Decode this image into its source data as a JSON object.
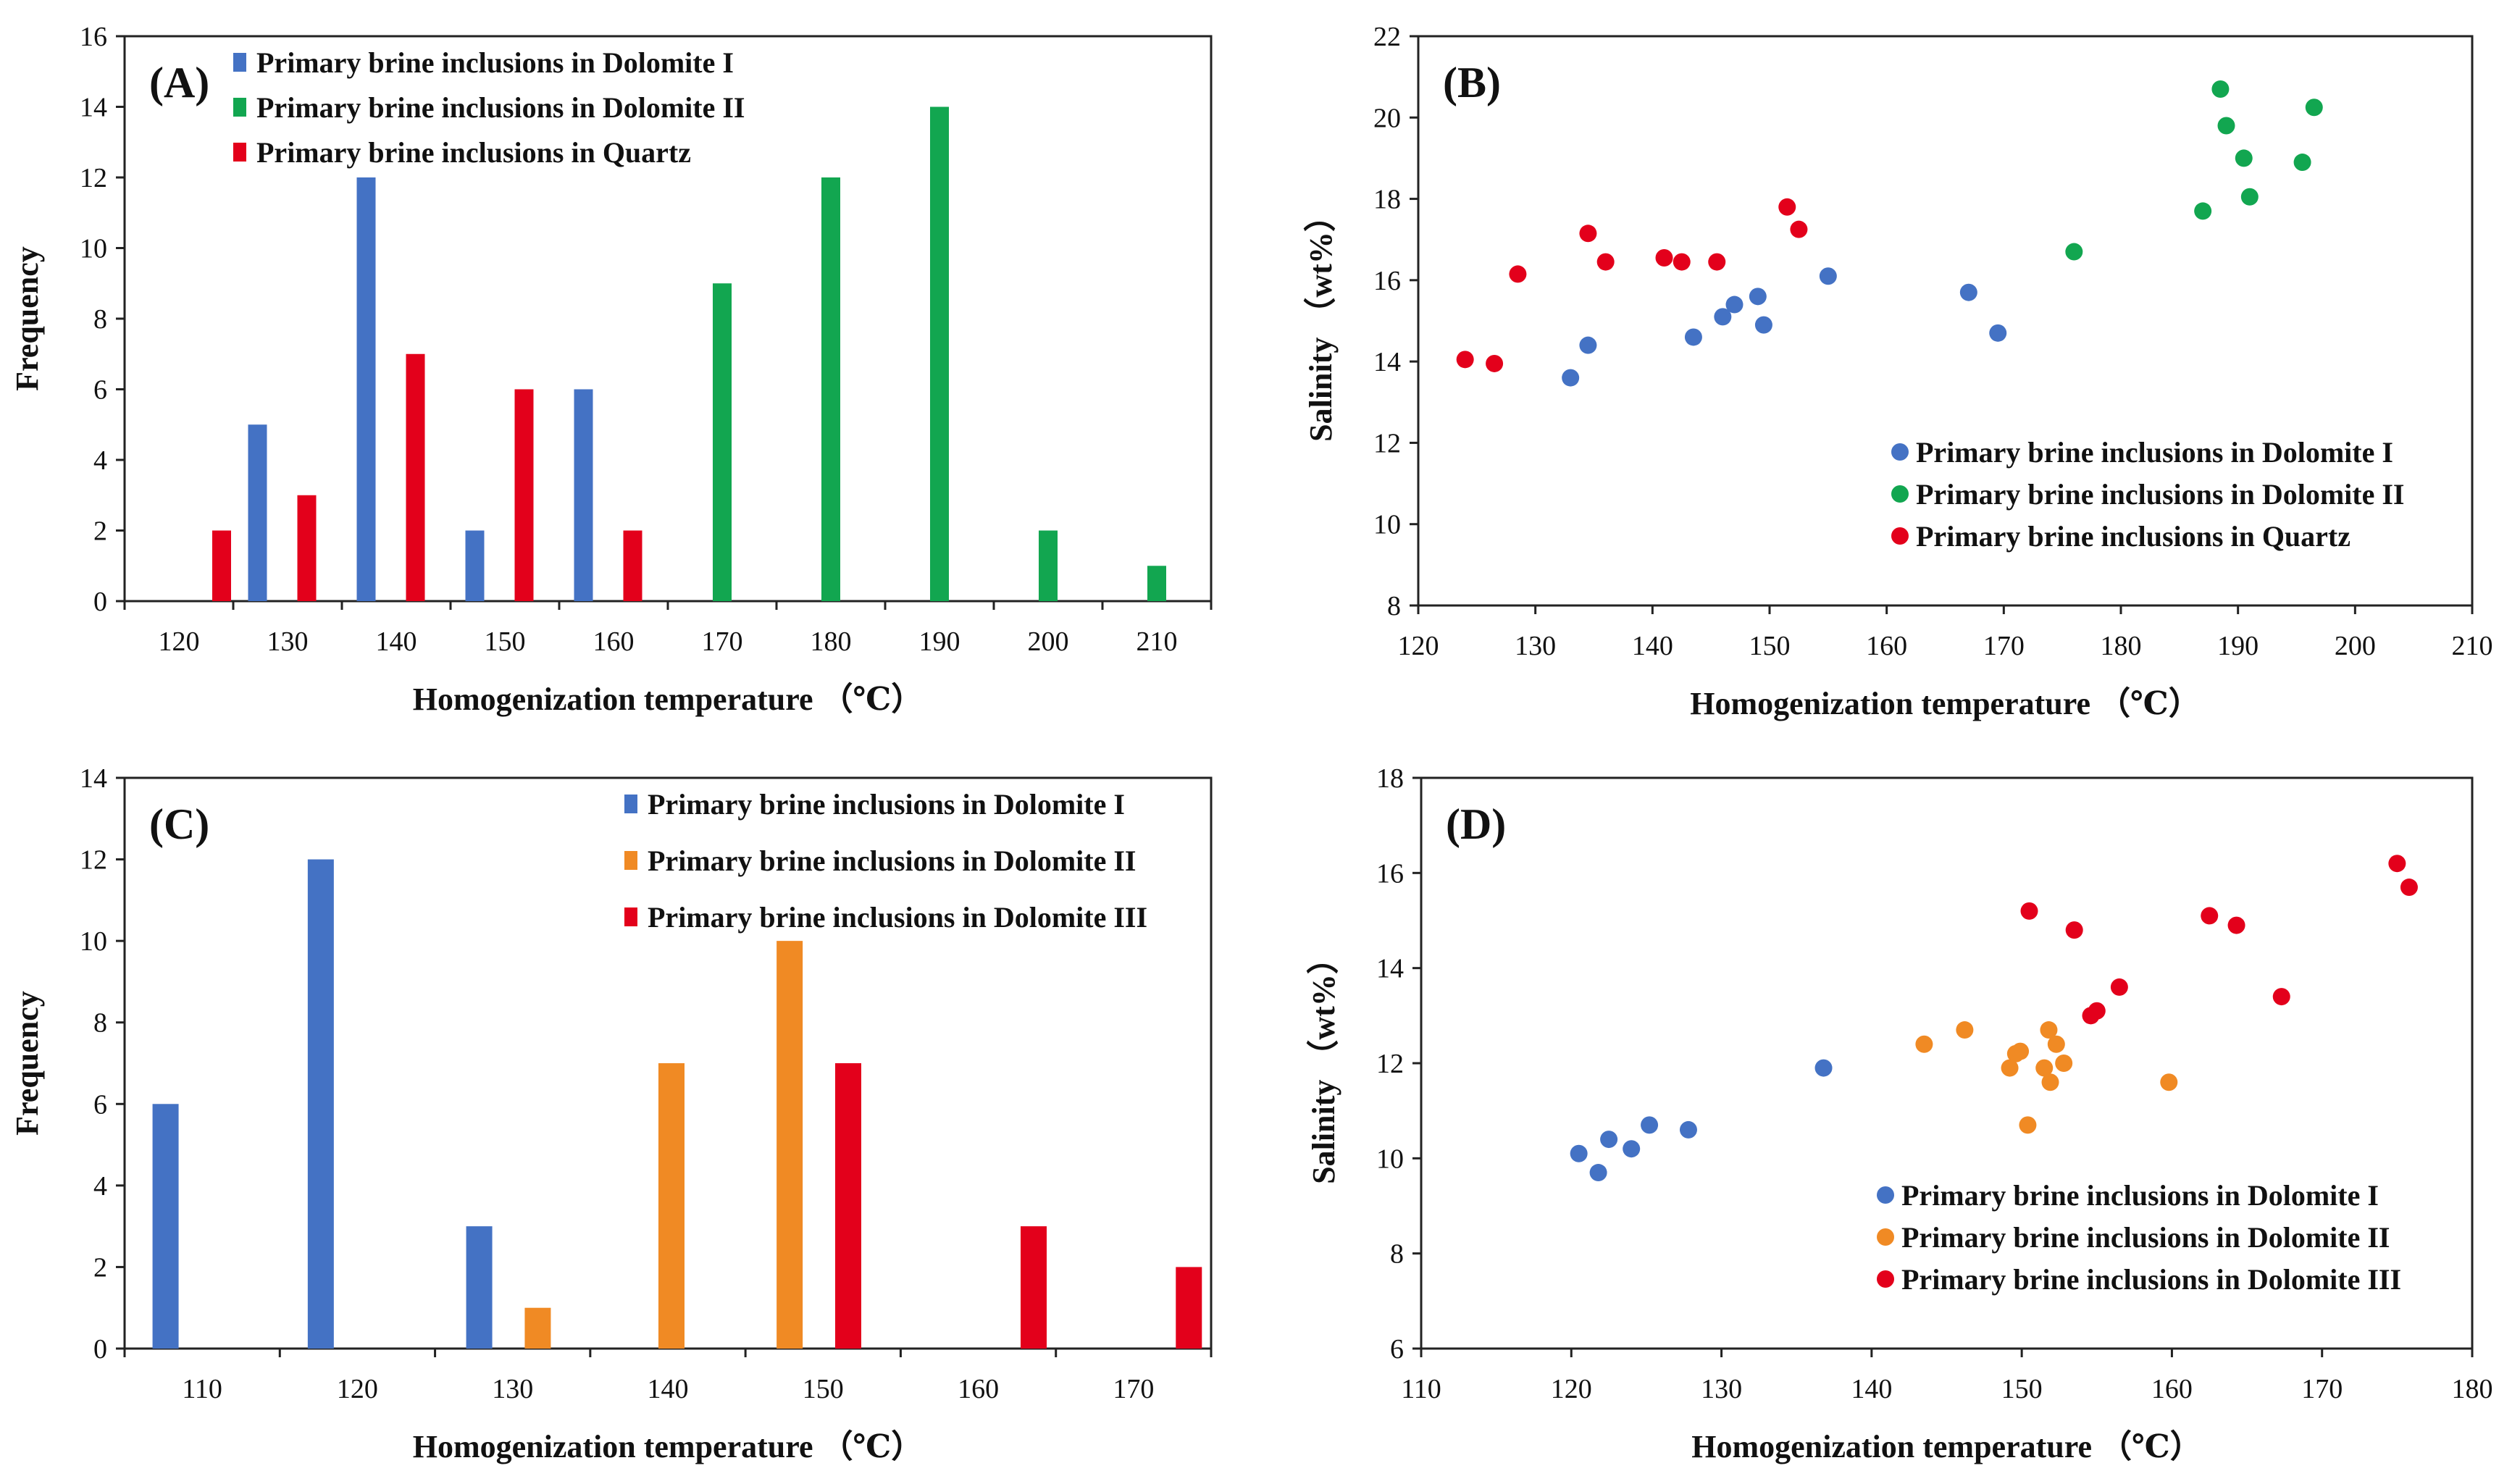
{
  "colors": {
    "blue": "#4472C4",
    "green": "#12A650",
    "red": "#E3001B",
    "orange": "#F08A24"
  },
  "chart_data": [
    {
      "id": "A",
      "type": "bar",
      "panel_label": "(A)",
      "xlabel": "Homogenization temperature （℃）",
      "ylabel": "Frequency",
      "categories": [
        "120",
        "130",
        "140",
        "150",
        "160",
        "170",
        "180",
        "190",
        "200",
        "210"
      ],
      "ylim": [
        0,
        16
      ],
      "yticks": [
        0,
        2,
        4,
        6,
        8,
        10,
        12,
        14,
        16
      ],
      "legend_position": "top-left",
      "series": [
        {
          "name": "Primary brine inclusions in Dolomite I",
          "color": "blue",
          "values": [
            0,
            5,
            12,
            2,
            6,
            0,
            0,
            0,
            0,
            0
          ]
        },
        {
          "name": "Primary brine inclusions in Dolomite II",
          "color": "green",
          "values": [
            0,
            0,
            0,
            0,
            0,
            9,
            12,
            14,
            2,
            1
          ]
        },
        {
          "name": "Primary brine inclusions in Quartz",
          "color": "red",
          "values": [
            2,
            3,
            7,
            6,
            2,
            0,
            0,
            0,
            0,
            0
          ]
        }
      ]
    },
    {
      "id": "B",
      "type": "scatter",
      "panel_label": "(B)",
      "xlabel": "Homogenization temperature （℃）",
      "ylabel": "Salinity （wt%）",
      "xlim": [
        120,
        210
      ],
      "ylim": [
        8,
        22
      ],
      "xticks": [
        120,
        130,
        140,
        150,
        160,
        170,
        180,
        190,
        200,
        210
      ],
      "yticks": [
        8,
        10,
        12,
        14,
        16,
        18,
        20,
        22
      ],
      "legend_position": "bottom-right",
      "series": [
        {
          "name": "Primary brine inclusions in Dolomite I",
          "color": "blue",
          "points": [
            [
              133,
              13.6
            ],
            [
              134.5,
              14.4
            ],
            [
              143.5,
              14.6
            ],
            [
              146,
              15.1
            ],
            [
              147,
              15.4
            ],
            [
              149,
              15.6
            ],
            [
              149.5,
              14.9
            ],
            [
              155,
              16.1
            ],
            [
              167,
              15.7
            ],
            [
              169.5,
              14.7
            ]
          ]
        },
        {
          "name": "Primary brine inclusions in Dolomite II",
          "color": "green",
          "points": [
            [
              176,
              16.7
            ],
            [
              187,
              17.7
            ],
            [
              188.5,
              20.7
            ],
            [
              189,
              19.8
            ],
            [
              190.5,
              19
            ],
            [
              191,
              18.05
            ],
            [
              195.5,
              18.9
            ],
            [
              196.5,
              20.25
            ]
          ]
        },
        {
          "name": "Primary brine inclusions in Quartz",
          "color": "red",
          "points": [
            [
              124,
              14.05
            ],
            [
              126.5,
              13.95
            ],
            [
              128.5,
              16.15
            ],
            [
              134.5,
              17.15
            ],
            [
              136,
              16.45
            ],
            [
              141,
              16.55
            ],
            [
              142.5,
              16.45
            ],
            [
              145.5,
              16.45
            ],
            [
              151.5,
              17.8
            ],
            [
              152.5,
              17.25
            ]
          ]
        }
      ]
    },
    {
      "id": "C",
      "type": "bar",
      "panel_label": "(C)",
      "xlabel": "Homogenization temperature （℃）",
      "ylabel": "Frequency",
      "categories": [
        "110",
        "120",
        "130",
        "140",
        "150",
        "160",
        "170"
      ],
      "ylim": [
        0,
        14
      ],
      "yticks": [
        0,
        2,
        4,
        6,
        8,
        10,
        12,
        14
      ],
      "legend_position": "top-right",
      "series": [
        {
          "name": "Primary brine inclusions in Dolomite I",
          "color": "blue",
          "values": [
            6,
            12,
            3,
            0,
            0,
            0,
            0
          ]
        },
        {
          "name": "Primary brine inclusions in Dolomite II",
          "color": "orange",
          "values": [
            0,
            0,
            1,
            7,
            10,
            0,
            0
          ]
        },
        {
          "name": "Primary brine inclusions in Dolomite III",
          "color": "red",
          "values": [
            0,
            0,
            0,
            0,
            7,
            3,
            2
          ]
        }
      ]
    },
    {
      "id": "D",
      "type": "scatter",
      "panel_label": "(D)",
      "xlabel": "Homogenization temperature （℃）",
      "ylabel": "Salinity （wt%）",
      "xlim": [
        110,
        180
      ],
      "ylim": [
        6,
        18
      ],
      "xticks": [
        110,
        120,
        130,
        140,
        150,
        160,
        170,
        180
      ],
      "yticks": [
        6,
        8,
        10,
        12,
        14,
        16,
        18
      ],
      "legend_position": "bottom-right",
      "series": [
        {
          "name": "Primary brine inclusions in Dolomite I",
          "color": "blue",
          "points": [
            [
              120.5,
              10.1
            ],
            [
              121.8,
              9.7
            ],
            [
              122.5,
              10.4
            ],
            [
              124,
              10.2
            ],
            [
              125.2,
              10.7
            ],
            [
              127.8,
              10.6
            ],
            [
              136.8,
              11.9
            ]
          ]
        },
        {
          "name": "Primary brine inclusions in Dolomite II",
          "color": "orange",
          "points": [
            [
              143.5,
              12.4
            ],
            [
              146.2,
              12.7
            ],
            [
              149.2,
              11.9
            ],
            [
              149.6,
              12.2
            ],
            [
              149.9,
              12.25
            ],
            [
              150.4,
              10.7
            ],
            [
              151.5,
              11.9
            ],
            [
              151.8,
              12.7
            ],
            [
              151.9,
              11.6
            ],
            [
              152.3,
              12.4
            ],
            [
              152.8,
              12.0
            ],
            [
              159.8,
              11.6
            ]
          ]
        },
        {
          "name": "Primary brine inclusions in Dolomite III",
          "color": "red",
          "points": [
            [
              150.5,
              15.2
            ],
            [
              153.5,
              14.8
            ],
            [
              154.6,
              13.0
            ],
            [
              155,
              13.1
            ],
            [
              156.5,
              13.6
            ],
            [
              162.5,
              15.1
            ],
            [
              164.3,
              14.9
            ],
            [
              167.3,
              13.4
            ],
            [
              175,
              16.2
            ],
            [
              175.8,
              15.7
            ]
          ]
        }
      ]
    }
  ]
}
